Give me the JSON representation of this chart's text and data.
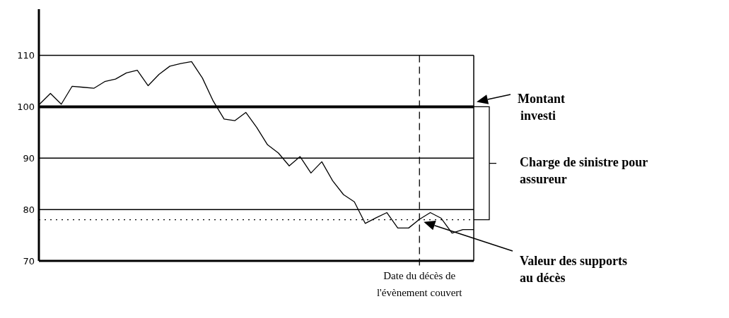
{
  "chart_data": {
    "type": "line",
    "categories": [
      null,
      null,
      null,
      null,
      null,
      null,
      null,
      null,
      null,
      null,
      null,
      null,
      null,
      null,
      null,
      null,
      null,
      null,
      null,
      null,
      null,
      null,
      null,
      null,
      null,
      null,
      null,
      null,
      null,
      null,
      null,
      null,
      null,
      null,
      null,
      null,
      null,
      null,
      null,
      null,
      null
    ],
    "series": [
      {
        "color": "#000000",
        "values": [
          100.5,
          102.6,
          100.5,
          104,
          103.8,
          103.6,
          104.9,
          105.4,
          106.6,
          107.1,
          104.1,
          106.3,
          107.9,
          108.4,
          108.8,
          105.6,
          101.1,
          97.6,
          97.3,
          98.9,
          96.0,
          92.6,
          91.0,
          88.5,
          90.3,
          87.1,
          89.3,
          85.6,
          82.9,
          81.5,
          77.3,
          78.4,
          79.4,
          76.4,
          76.4,
          78.1,
          79.4,
          78.3,
          75.4,
          76.1,
          76.1
        ]
      }
    ],
    "ylim": [
      70,
      119
    ],
    "yticks": [
      70,
      80,
      90,
      100,
      110
    ],
    "tick_labels": "y",
    "grid": "y",
    "line_style": "solid",
    "marker": "none",
    "ref_lines": [
      {
        "axis": "y",
        "value": 100,
        "color": "#000000",
        "line_style": "solid"
      },
      {
        "axis": "y",
        "value": 78,
        "color": "#000000",
        "line_style": "dotted"
      }
    ],
    "annotations": [
      "Montant investi",
      "Charge de sinistre pour assureur",
      "Valeur des supports au décès",
      "Date du décès de l'évènement couvert"
    ]
  }
}
